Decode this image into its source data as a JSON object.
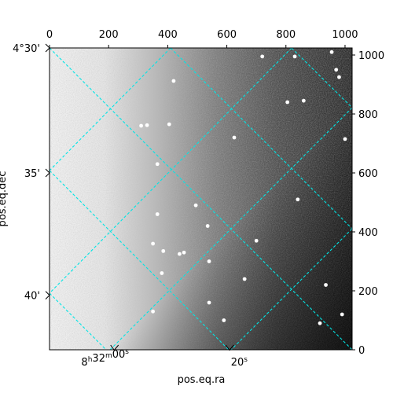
{
  "chart_data": {
    "type": "scatter",
    "title": "",
    "xlabel": "pos.eq.ra",
    "ylabel": "pos.eq.dec",
    "pixel_axes": {
      "x_ticks": [
        0,
        200,
        400,
        600,
        800,
        1000
      ],
      "y_ticks": [
        0,
        200,
        400,
        600,
        800,
        1000
      ],
      "xlim": [
        0,
        1024
      ],
      "ylim": [
        0,
        1024
      ]
    },
    "world_axes": {
      "ra_ticks": [
        {
          "x": 220,
          "label": "8h32m00s"
        },
        {
          "x": 610,
          "label": "20s"
        }
      ],
      "dec_ticks": [
        {
          "y": 1024,
          "label": "4°30'"
        },
        {
          "y": 600,
          "label": "35'"
        },
        {
          "y": 185,
          "label": "40'"
        }
      ]
    },
    "coordinate_grid": {
      "color": "#00e5e5",
      "style": "dashed"
    },
    "sources": [
      {
        "x": 720,
        "y": 995
      },
      {
        "x": 955,
        "y": 1010
      },
      {
        "x": 970,
        "y": 950
      },
      {
        "x": 830,
        "y": 995
      },
      {
        "x": 980,
        "y": 925
      },
      {
        "x": 420,
        "y": 912
      },
      {
        "x": 860,
        "y": 845
      },
      {
        "x": 805,
        "y": 840
      },
      {
        "x": 310,
        "y": 760
      },
      {
        "x": 330,
        "y": 762
      },
      {
        "x": 405,
        "y": 765
      },
      {
        "x": 625,
        "y": 720
      },
      {
        "x": 365,
        "y": 630
      },
      {
        "x": 1000,
        "y": 715
      },
      {
        "x": 840,
        "y": 510
      },
      {
        "x": 365,
        "y": 460
      },
      {
        "x": 535,
        "y": 420
      },
      {
        "x": 350,
        "y": 360
      },
      {
        "x": 385,
        "y": 335
      },
      {
        "x": 440,
        "y": 325
      },
      {
        "x": 455,
        "y": 330
      },
      {
        "x": 540,
        "y": 300
      },
      {
        "x": 380,
        "y": 260
      },
      {
        "x": 660,
        "y": 240
      },
      {
        "x": 935,
        "y": 220
      },
      {
        "x": 540,
        "y": 160
      },
      {
        "x": 350,
        "y": 130
      },
      {
        "x": 990,
        "y": 120
      },
      {
        "x": 590,
        "y": 100
      },
      {
        "x": 915,
        "y": 90
      },
      {
        "x": 700,
        "y": 370
      },
      {
        "x": 495,
        "y": 490
      }
    ]
  }
}
